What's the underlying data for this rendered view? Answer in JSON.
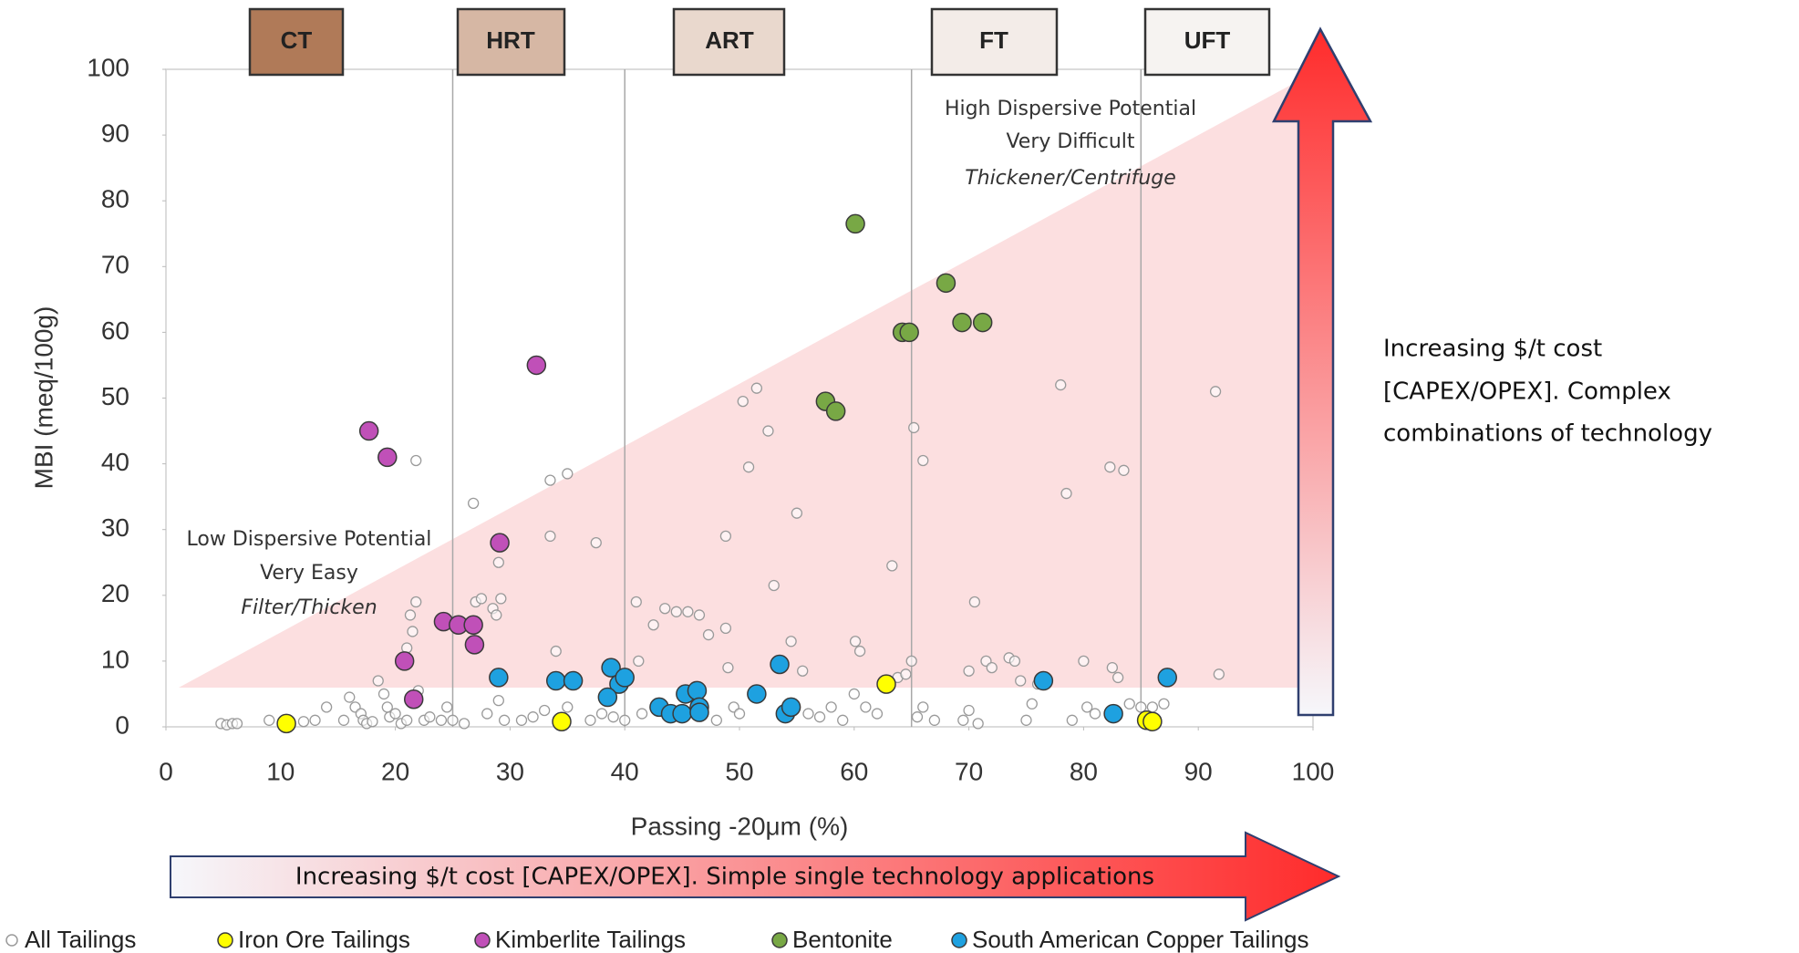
{
  "zones": [
    "CT",
    "HRT",
    "ART",
    "FT",
    "UFT"
  ],
  "chart_data": {
    "type": "scatter",
    "x_label": "Passing -20μm (%)",
    "y_label": "MBI (meq/100g)",
    "xlim": [
      0,
      100
    ],
    "xticks": [
      0,
      10,
      20,
      30,
      40,
      50,
      60,
      70,
      80,
      90,
      100
    ],
    "ylim": [
      0,
      100
    ],
    "yticks": [
      0,
      10,
      20,
      30,
      40,
      50,
      60,
      70,
      80,
      90,
      100
    ],
    "zone_boundaries": [
      25,
      40,
      65,
      85
    ],
    "annotations": {
      "high": [
        "High Dispersive Potential",
        "Very Difficult",
        "Thickener/Centrifuge"
      ],
      "low": [
        "Low Dispersive Potential",
        "Very  Easy",
        "Filter/Thicken"
      ],
      "side": [
        "Increasing $/t cost",
        "[CAPEX/OPEX]. Complex",
        "combinations of  technology"
      ],
      "bottom": "Increasing $/t cost [CAPEX/OPEX]. Simple single technology applications"
    },
    "series": [
      {
        "name": "All Tailings",
        "color": "#9a9a9a",
        "hollow": true,
        "x": [
          4.8,
          5.3,
          5.8,
          6.2,
          9,
          12,
          13,
          14,
          15.5,
          16,
          16.5,
          17,
          17.2,
          17.5,
          18,
          18.5,
          19,
          19.3,
          19.5,
          20,
          20.5,
          21,
          21,
          21.3,
          21.5,
          21.8,
          21.8,
          22,
          22.5,
          23,
          24,
          24.5,
          25,
          26,
          26.8,
          27,
          27.5,
          28,
          28.5,
          28.8,
          29,
          29.2,
          29.5,
          29,
          31,
          32,
          33,
          33.5,
          33.5,
          34,
          35,
          35,
          37,
          37.5,
          38,
          39,
          40,
          41,
          41.2,
          41.5,
          42.5,
          43.5,
          44.5,
          45.5,
          46.5,
          47.3,
          48,
          48.8,
          48.8,
          49,
          49.5,
          50,
          50.3,
          50.8,
          51.5,
          52.5,
          53,
          54.5,
          55,
          55.5,
          56,
          57,
          58,
          59,
          60,
          60.1,
          60.5,
          61,
          62,
          63.3,
          63.8,
          64.5,
          65,
          65.2,
          65.5,
          66,
          66,
          67,
          69.5,
          70,
          70,
          70.5,
          70.8,
          71.5,
          72,
          73.5,
          74,
          74.5,
          75,
          75.5,
          76,
          78,
          78.5,
          79,
          80,
          80.3,
          81,
          82.3,
          82.5,
          83,
          83.5,
          84,
          85,
          86,
          87,
          91.5,
          91.8
        ],
        "y": [
          0.5,
          0.3,
          0.5,
          0.5,
          1,
          0.8,
          1,
          3,
          1,
          4.5,
          3,
          2,
          1,
          0.5,
          0.8,
          7,
          5,
          3,
          1.5,
          2,
          0.5,
          1,
          12,
          17,
          14.5,
          19,
          40.5,
          5.5,
          1,
          1.5,
          1,
          3,
          1,
          0.5,
          34,
          19,
          19.5,
          2,
          18,
          17,
          25,
          19.5,
          1,
          4,
          1,
          1.5,
          2.5,
          29,
          37.5,
          11.5,
          38.5,
          3,
          1,
          28,
          2,
          1.5,
          1,
          19,
          10,
          2,
          15.5,
          18,
          17.5,
          17.5,
          17,
          14,
          1,
          15,
          29,
          9,
          3,
          2,
          49.5,
          39.5,
          51.5,
          45,
          21.5,
          13,
          32.5,
          8.5,
          2,
          1.5,
          3,
          1,
          5,
          13,
          11.5,
          3,
          2,
          24.5,
          7.5,
          8,
          10,
          45.5,
          1.5,
          3,
          40.5,
          1,
          1,
          2.5,
          8.5,
          19,
          0.5,
          10,
          9,
          10.5,
          10,
          7,
          1,
          3.5,
          6.5,
          52,
          35.5,
          1,
          10,
          3,
          2,
          39.5,
          9,
          7.5,
          39,
          3.5,
          3,
          3,
          3.5,
          51,
          8
        ]
      },
      {
        "name": "Iron Ore Tailings",
        "color": "#ffff00",
        "x": [
          10.5,
          34.5,
          62.8,
          85.5,
          86
        ],
        "y": [
          0.5,
          0.8,
          6.5,
          1,
          0.8
        ]
      },
      {
        "name": "Kimberlite Tailings",
        "color": "#c050b8",
        "x": [
          17.7,
          19.3,
          32.3,
          29.1,
          24.2,
          25.5,
          26.8,
          26.9,
          20.8,
          21.6
        ],
        "y": [
          45,
          41,
          55,
          28,
          16,
          15.5,
          15.5,
          12.5,
          10,
          4.2
        ]
      },
      {
        "name": "Bentonite",
        "color": "#78a845",
        "x": [
          60.1,
          68,
          64.2,
          64.8,
          69.4,
          71.2,
          57.5,
          58.4
        ],
        "y": [
          76.5,
          67.5,
          60,
          60,
          61.5,
          61.5,
          49.5,
          48
        ]
      },
      {
        "name": "South American Copper Tailings",
        "color": "#1ea1e0",
        "x": [
          29,
          34,
          35.5,
          38.8,
          39.5,
          40,
          38.5,
          43,
          44,
          45,
          45.3,
          46.3,
          46.5,
          46.5,
          51.5,
          53.5,
          54,
          54.5,
          76.5,
          82.6,
          87.3
        ],
        "y": [
          7.5,
          7,
          7,
          9,
          6.5,
          7.5,
          4.5,
          3,
          2,
          2,
          5,
          5.5,
          3,
          2.2,
          5,
          9.5,
          2,
          3,
          7,
          2,
          7.5
        ]
      }
    ]
  }
}
